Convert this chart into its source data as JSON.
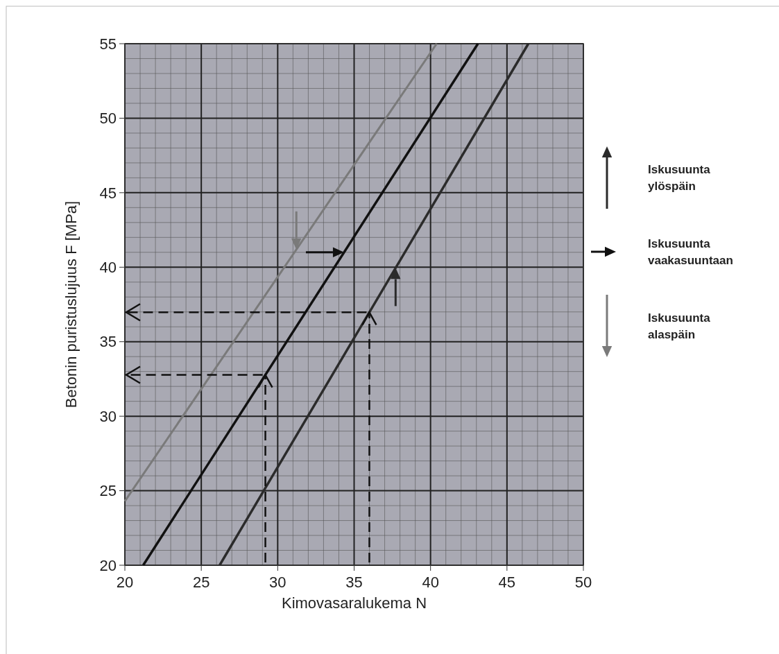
{
  "chart_data": {
    "type": "line",
    "xlabel": "Kimovasaralukema N",
    "ylabel": "Betonin puristuslujuus F [MPa]",
    "xlim": [
      20,
      50
    ],
    "xticks": [
      20,
      25,
      30,
      35,
      40,
      45,
      50
    ],
    "ylim": [
      20,
      55
    ],
    "yticks": [
      20,
      25,
      30,
      35,
      40,
      45,
      50,
      55
    ],
    "grid": true,
    "legend": "right",
    "series": [
      {
        "name": "Iskusuunta ylöspäin",
        "color": "#2b2b2b",
        "x": [
          26.2,
          46.4
        ],
        "values": [
          20,
          55
        ]
      },
      {
        "name": "Iskusuunta vaakasuuntaan",
        "color": "#111111",
        "x": [
          21.2,
          43.1
        ],
        "values": [
          20,
          55
        ]
      },
      {
        "name": "Iskusuunta alaspäin",
        "color": "#7a7a7a",
        "x": [
          20,
          40.4
        ],
        "values": [
          24.3,
          55
        ]
      }
    ]
  }
}
